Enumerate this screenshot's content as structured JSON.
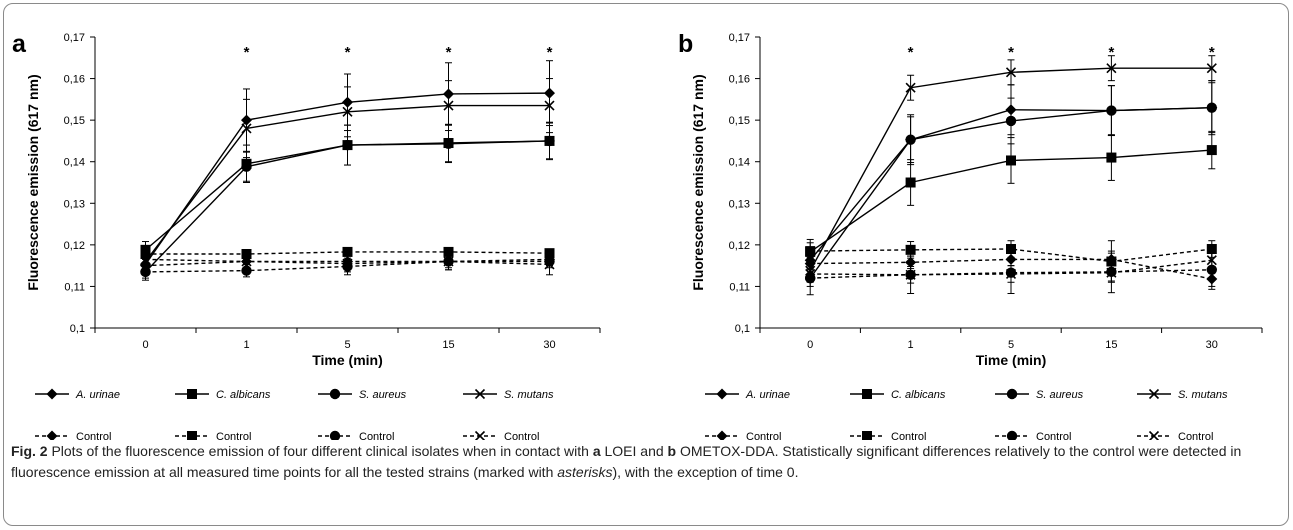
{
  "chart_data": [
    {
      "panel": "a",
      "type": "line",
      "xlabel": "Time (min)",
      "ylabel": "Fluorescence emission (617 nm)",
      "categories": [
        "0",
        "1",
        "5",
        "15",
        "30"
      ],
      "ylim": [
        0.1,
        0.17
      ],
      "yticks": [
        "0,1",
        "0,11",
        "0,12",
        "0,13",
        "0,14",
        "0,15",
        "0,16",
        "0,17"
      ],
      "significance_marks": [
        "",
        "*",
        "*",
        "*",
        "*"
      ],
      "series": [
        {
          "name": "A. urinae",
          "style": "solid",
          "marker": "diamond",
          "values": [
            0.1153,
            0.15,
            0.1543,
            0.1563,
            0.1565
          ],
          "errors": [
            0.0025,
            0.0075,
            0.0068,
            0.0075,
            0.0078
          ]
        },
        {
          "name": "C. albicans",
          "style": "solid",
          "marker": "square",
          "values": [
            0.1188,
            0.1395,
            0.144,
            0.1445,
            0.145
          ],
          "errors": [
            0.002,
            0.0045,
            0.0048,
            0.0045,
            0.0045
          ]
        },
        {
          "name": "S. aureus",
          "style": "solid",
          "marker": "circle",
          "values": [
            0.1135,
            0.1388,
            0.144,
            0.1443,
            0.145
          ],
          "errors": [
            0.002,
            0.0035,
            0.0048,
            0.0045,
            0.0043
          ]
        },
        {
          "name": "S. mutans",
          "style": "solid",
          "marker": "x",
          "values": [
            0.116,
            0.148,
            0.152,
            0.1535,
            0.1535
          ],
          "errors": [
            0.002,
            0.007,
            0.006,
            0.006,
            0.0065
          ]
        },
        {
          "name": "Control",
          "style": "dashed",
          "marker": "diamond",
          "values": [
            0.115,
            0.116,
            0.116,
            0.116,
            0.1165
          ],
          "errors": [
            0.0015,
            0.0015,
            0.0015,
            0.0015,
            0.0015
          ]
        },
        {
          "name": "Control",
          "style": "dashed",
          "marker": "square",
          "values": [
            0.1178,
            0.1178,
            0.1183,
            0.1183,
            0.118
          ],
          "errors": [
            0.001,
            0.001,
            0.001,
            0.001,
            0.001
          ]
        },
        {
          "name": "Control",
          "style": "dashed",
          "marker": "circle",
          "values": [
            0.1135,
            0.1138,
            0.1148,
            0.116,
            0.116
          ],
          "errors": [
            0.0015,
            0.0015,
            0.002,
            0.002,
            0.0015
          ]
        },
        {
          "name": "Control",
          "style": "dashed",
          "marker": "x",
          "values": [
            0.1165,
            0.116,
            0.1155,
            0.116,
            0.1153
          ],
          "errors": [
            0.0015,
            0.002,
            0.002,
            0.002,
            0.0025
          ]
        }
      ]
    },
    {
      "panel": "b",
      "type": "line",
      "xlabel": "Time (min)",
      "ylabel": "Fluorescence emission (617 nm)",
      "categories": [
        "0",
        "1",
        "5",
        "15",
        "30"
      ],
      "ylim": [
        0.1,
        0.17
      ],
      "yticks": [
        "0,1",
        "0,11",
        "0,12",
        "0,13",
        "0,14",
        "0,15",
        "0,16",
        "0,17"
      ],
      "significance_marks": [
        "",
        "*",
        "*",
        "*",
        "*"
      ],
      "series": [
        {
          "name": "A. urinae",
          "style": "solid",
          "marker": "diamond",
          "values": [
            0.1163,
            0.1453,
            0.1525,
            0.1523,
            0.153
          ],
          "errors": [
            0.002,
            0.006,
            0.006,
            0.006,
            0.006
          ]
        },
        {
          "name": "C. albicans",
          "style": "solid",
          "marker": "square",
          "values": [
            0.1183,
            0.135,
            0.1403,
            0.141,
            0.1428
          ],
          "errors": [
            0.003,
            0.0055,
            0.0055,
            0.0055,
            0.0045
          ]
        },
        {
          "name": "S. aureus",
          "style": "solid",
          "marker": "circle",
          "values": [
            0.112,
            0.1453,
            0.1498,
            0.1523,
            0.153
          ],
          "errors": [
            0.002,
            0.0055,
            0.0055,
            0.006,
            0.0065
          ]
        },
        {
          "name": "S. mutans",
          "style": "solid",
          "marker": "x",
          "values": [
            0.1138,
            0.1578,
            0.1615,
            0.1625,
            0.1625
          ],
          "errors": [
            0.002,
            0.003,
            0.003,
            0.003,
            0.003
          ]
        },
        {
          "name": "Control",
          "style": "dashed",
          "marker": "diamond",
          "values": [
            0.1155,
            0.1158,
            0.1165,
            0.1165,
            0.1118
          ],
          "errors": [
            0.0015,
            0.0015,
            0.0015,
            0.0015,
            0.0025
          ]
        },
        {
          "name": "Control",
          "style": "dashed",
          "marker": "square",
          "values": [
            0.1185,
            0.1188,
            0.119,
            0.116,
            0.119
          ],
          "errors": [
            0.002,
            0.002,
            0.002,
            0.005,
            0.002
          ]
        },
        {
          "name": "Control",
          "style": "dashed",
          "marker": "circle",
          "values": [
            0.112,
            0.1128,
            0.1133,
            0.1135,
            0.114
          ],
          "errors": [
            0.004,
            0.0045,
            0.005,
            0.005,
            0.004
          ]
        },
        {
          "name": "Control",
          "style": "dashed",
          "marker": "x",
          "values": [
            0.113,
            0.1128,
            0.113,
            0.1133,
            0.1163
          ],
          "errors": [
            0.002,
            0.002,
            0.002,
            0.002,
            0.002
          ]
        }
      ]
    }
  ],
  "caption": {
    "fig_label": "Fig. 2",
    "part1": "  Plots of the fluorescence emission of four different clinical isolates when in contact with ",
    "panel_a": "a",
    "part2": " LOEI and ",
    "panel_b": "b",
    "part3": " OMETOX-DDA. Statistically significant differences relatively to the control were detected in fluorescence emission at all measured time points for all the tested strains (marked with ",
    "asterisks_word": "asterisks",
    "part4": "), with the exception of time 0."
  }
}
